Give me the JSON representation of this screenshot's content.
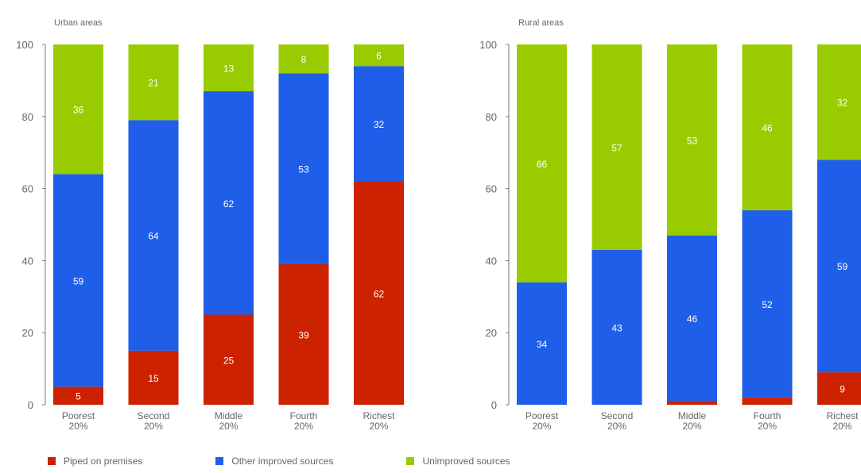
{
  "colors": {
    "piped": "#cc2200",
    "other": "#1f5ee8",
    "unimproved": "#99cc00",
    "axis": "#777777",
    "label_text": "#666666"
  },
  "chart_data": [
    {
      "type": "bar",
      "stacked": true,
      "title": "Urban areas",
      "categories": [
        "Poorest\n20%",
        "Second\n20%",
        "Middle\n20%",
        "Fourth\n20%",
        "Richest\n20%"
      ],
      "series": [
        {
          "name": "Piped on premises",
          "values": [
            5,
            15,
            25,
            39,
            62
          ]
        },
        {
          "name": "Other improved sources",
          "values": [
            59,
            64,
            62,
            53,
            32
          ]
        },
        {
          "name": "Unimproved sources",
          "values": [
            36,
            21,
            13,
            8,
            6
          ]
        }
      ],
      "data_labels": {
        "Piped on premises": [
          "5",
          "15",
          "25",
          "39",
          "62"
        ],
        "Other improved sources": [
          "59",
          "64",
          "62",
          "53",
          "32"
        ],
        "Unimproved sources": [
          "36",
          "21",
          "13",
          "8",
          "6"
        ]
      },
      "ylim": [
        0,
        100
      ],
      "yticks": [
        "0",
        "20",
        "40",
        "60",
        "80",
        "100"
      ],
      "grid": false
    },
    {
      "type": "bar",
      "stacked": true,
      "title": "Rural areas",
      "categories": [
        "Poorest\n20%",
        "Second\n20%",
        "Middle\n20%",
        "Fourth\n20%",
        "Richest\n20%"
      ],
      "series": [
        {
          "name": "Piped on premises",
          "values": [
            0,
            0,
            1,
            2,
            9
          ]
        },
        {
          "name": "Other improved sources",
          "values": [
            34,
            43,
            46,
            52,
            59
          ]
        },
        {
          "name": "Unimproved sources",
          "values": [
            66,
            57,
            53,
            46,
            32
          ]
        }
      ],
      "data_labels": {
        "Piped on premises": [
          "",
          "",
          "1",
          "2",
          "9"
        ],
        "Other improved sources": [
          "34",
          "43",
          "46",
          "52",
          "59"
        ],
        "Unimproved sources": [
          "66",
          "57",
          "53",
          "46",
          "32"
        ]
      },
      "ylim": [
        0,
        100
      ],
      "yticks": [
        "0",
        "20",
        "40",
        "60",
        "80",
        "100"
      ],
      "grid": false
    }
  ],
  "legend": {
    "placement": "bottom",
    "items": [
      {
        "label": "Piped on premises",
        "color": "#cc2200"
      },
      {
        "label": "Other improved sources",
        "color": "#1f5ee8"
      },
      {
        "label": "Unimproved sources",
        "color": "#99cc00"
      }
    ]
  }
}
